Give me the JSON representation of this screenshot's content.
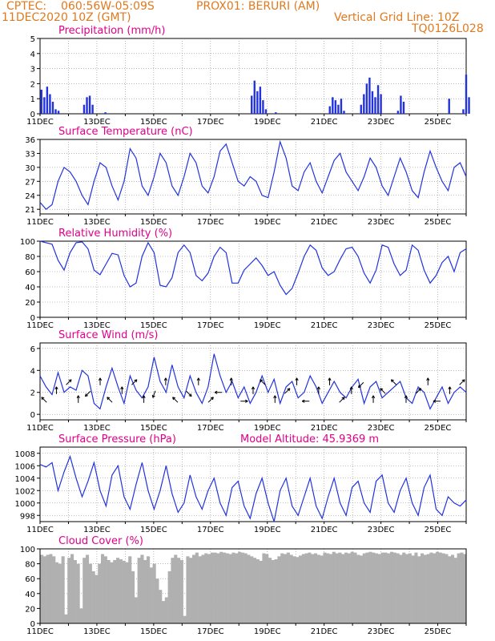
{
  "header": {
    "source": "CPTEC:",
    "coords": "060:56W-05:09S",
    "location": "PROX01: BERURI (AM)",
    "init_time": "11DEC2020 10Z (GMT)",
    "grid_note": "Vertical Grid Line: 10Z",
    "model_code": "TQ0126L028"
  },
  "colors": {
    "header_text": "#e07a1f",
    "panel_title": "#e0008a",
    "series_line": "#2233dd",
    "bars": "#2233dd",
    "cloud_fill": "#b0b0b0",
    "grid": "#888888"
  },
  "chart_data": [
    {
      "type": "bar",
      "title": "Precipitation (mm/h)",
      "x_tick_labels": [
        "11DEC",
        "13DEC",
        "15DEC",
        "17DEC",
        "19DEC",
        "21DEC",
        "23DEC",
        "25DEC"
      ],
      "ylim": [
        0,
        5
      ],
      "y_ticks": [
        0,
        1,
        2,
        3,
        4,
        5
      ],
      "grid": true,
      "series": [
        {
          "values": [
            [
              0.05,
              1.6
            ],
            [
              0.15,
              1.1
            ],
            [
              0.25,
              1.8
            ],
            [
              0.35,
              1.3
            ],
            [
              0.45,
              0.8
            ],
            [
              0.55,
              0.3
            ],
            [
              0.65,
              0.2
            ],
            [
              1.55,
              0.6
            ],
            [
              1.65,
              1.1
            ],
            [
              1.75,
              1.2
            ],
            [
              1.85,
              0.6
            ],
            [
              2.3,
              0.1
            ],
            [
              7.45,
              1.2
            ],
            [
              7.55,
              2.2
            ],
            [
              7.65,
              1.5
            ],
            [
              7.75,
              1.8
            ],
            [
              7.85,
              0.9
            ],
            [
              7.95,
              0.3
            ],
            [
              8.3,
              0.1
            ],
            [
              10.2,
              0.5
            ],
            [
              10.3,
              1.1
            ],
            [
              10.4,
              0.9
            ],
            [
              10.5,
              0.6
            ],
            [
              10.6,
              1.0
            ],
            [
              10.7,
              0.2
            ],
            [
              11.3,
              0.6
            ],
            [
              11.4,
              1.3
            ],
            [
              11.5,
              2.0
            ],
            [
              11.6,
              2.4
            ],
            [
              11.7,
              1.5
            ],
            [
              11.8,
              1.1
            ],
            [
              11.9,
              1.9
            ],
            [
              12.0,
              1.3
            ],
            [
              12.6,
              0.2
            ],
            [
              12.7,
              1.2
            ],
            [
              12.8,
              0.8
            ],
            [
              14.4,
              1.0
            ],
            [
              14.9,
              0.3
            ],
            [
              15.0,
              2.6
            ],
            [
              15.1,
              1.1
            ]
          ]
        }
      ]
    },
    {
      "type": "line",
      "title": "Surface Temperature (nC)",
      "x_tick_labels": [
        "11DEC",
        "13DEC",
        "15DEC",
        "17DEC",
        "19DEC",
        "21DEC",
        "23DEC",
        "25DEC"
      ],
      "ylim": [
        20,
        36
      ],
      "y_ticks": [
        21,
        24,
        27,
        30,
        33,
        36
      ],
      "grid": true,
      "series": [
        {
          "values": [
            22.5,
            21.0,
            22.0,
            27.0,
            30.0,
            29.0,
            27.0,
            24.0,
            22.0,
            27.0,
            31.0,
            30.0,
            26.0,
            23.0,
            27.0,
            34.0,
            32.0,
            26.0,
            24.0,
            28.0,
            33.0,
            31.0,
            26.0,
            24.0,
            28.0,
            33.0,
            31.0,
            26.0,
            24.5,
            28.0,
            33.5,
            35.0,
            31.0,
            27.0,
            26.0,
            28.0,
            27.0,
            24.0,
            23.5,
            29.0,
            35.5,
            32.0,
            26.0,
            25.0,
            29.0,
            31.0,
            27.0,
            24.5,
            28.0,
            31.5,
            33.0,
            29.0,
            27.0,
            25.0,
            28.0,
            32.0,
            30.0,
            26.0,
            24.0,
            28.0,
            32.0,
            29.0,
            25.0,
            23.5,
            29.0,
            33.5,
            30.0,
            27.0,
            25.0,
            30.0,
            31.0,
            28.0
          ]
        }
      ]
    },
    {
      "type": "line",
      "title": "Relative Humidity (%)",
      "x_tick_labels": [
        "11DEC",
        "13DEC",
        "15DEC",
        "17DEC",
        "19DEC",
        "21DEC",
        "23DEC",
        "25DEC"
      ],
      "ylim": [
        0,
        100
      ],
      "y_ticks": [
        0,
        20,
        40,
        60,
        80,
        100
      ],
      "grid": true,
      "series": [
        {
          "values": [
            100,
            98,
            96,
            75,
            62,
            85,
            98,
            99,
            90,
            62,
            56,
            70,
            84,
            82,
            55,
            40,
            45,
            80,
            98,
            85,
            42,
            40,
            52,
            85,
            95,
            85,
            55,
            48,
            58,
            80,
            92,
            85,
            45,
            45,
            62,
            70,
            78,
            68,
            55,
            60,
            42,
            30,
            38,
            58,
            80,
            95,
            88,
            65,
            55,
            60,
            76,
            90,
            92,
            80,
            58,
            45,
            62,
            95,
            92,
            70,
            55,
            62,
            95,
            88,
            62,
            45,
            55,
            72,
            80,
            60,
            85,
            90
          ]
        }
      ]
    },
    {
      "type": "line",
      "title": "Surface Wind (m/s)",
      "x_tick_labels": [
        "11DEC",
        "13DEC",
        "15DEC",
        "17DEC",
        "19DEC",
        "21DEC",
        "23DEC",
        "25DEC"
      ],
      "ylim": [
        -0.5,
        6.5
      ],
      "y_ticks": [
        0,
        2,
        4,
        6
      ],
      "grid": true,
      "series": [
        {
          "values": [
            3.5,
            2.5,
            1.8,
            3.8,
            2.0,
            2.5,
            2.2,
            4.0,
            3.5,
            1.0,
            0.5,
            2.5,
            4.2,
            2.5,
            1.0,
            3.5,
            2.2,
            1.5,
            2.5,
            5.2,
            3.0,
            2.0,
            4.5,
            2.5,
            1.5,
            3.5,
            2.0,
            1.0,
            2.5,
            5.5,
            3.5,
            2.0,
            3.0,
            1.5,
            2.5,
            1.0,
            2.0,
            3.5,
            2.0,
            3.2,
            1.0,
            2.5,
            3.0,
            1.5,
            2.0,
            3.5,
            2.5,
            1.0,
            2.0,
            3.0,
            2.0,
            1.5,
            2.5,
            3.2,
            1.0,
            2.5,
            3.0,
            1.5,
            2.0,
            2.5,
            3.0,
            1.5,
            1.0,
            2.5,
            2.0,
            0.5,
            1.5,
            2.5,
            1.0,
            2.0,
            2.5,
            2.0
          ]
        }
      ],
      "wind_direction_arrows_deg": [
        315,
        0,
        45,
        0,
        225,
        0,
        315,
        0,
        45,
        0,
        200,
        0,
        315,
        135,
        0,
        45,
        270,
        0,
        90,
        0,
        315,
        0,
        45,
        0,
        270,
        0,
        0,
        45,
        0,
        225,
        0,
        315,
        315,
        0,
        45,
        0,
        270,
        0,
        45
      ]
    },
    {
      "type": "line",
      "title": "Surface Pressure (hPa)",
      "annotation": "Model Altitude: 45.9369 m",
      "x_tick_labels": [
        "11DEC",
        "13DEC",
        "15DEC",
        "17DEC",
        "19DEC",
        "21DEC",
        "23DEC",
        "25DEC"
      ],
      "ylim": [
        997,
        1009
      ],
      "y_ticks": [
        998,
        1000,
        1002,
        1004,
        1006,
        1008
      ],
      "grid": true,
      "series": [
        {
          "values": [
            1006.2,
            1005.8,
            1006.5,
            1002.0,
            1005.0,
            1007.5,
            1004.0,
            1001.0,
            1003.5,
            1006.5,
            1002.0,
            999.5,
            1004.5,
            1006.0,
            1001.0,
            999.0,
            1003.0,
            1006.5,
            1002.0,
            999.0,
            1002.0,
            1006.0,
            1001.5,
            998.5,
            1000.0,
            1004.5,
            1001.0,
            999.0,
            1002.0,
            1004.0,
            1000.0,
            998.0,
            1002.5,
            1003.5,
            999.5,
            997.5,
            1001.5,
            1004.0,
            1000.0,
            997.0,
            1002.0,
            1004.0,
            999.5,
            998.0,
            1001.0,
            1004.0,
            999.5,
            997.5,
            1001.0,
            1004.0,
            1000.0,
            998.0,
            1002.5,
            1003.5,
            1000.0,
            998.5,
            1003.5,
            1004.5,
            1000.0,
            998.5,
            1002.0,
            1004.0,
            1000.0,
            998.0,
            1002.5,
            1004.5,
            999.0,
            998.0,
            1001.0,
            1000.0,
            999.5,
            1000.5
          ]
        }
      ]
    },
    {
      "type": "area",
      "title": "Cloud Cover (%)",
      "x_tick_labels": [
        "11DEC",
        "13DEC",
        "15DEC",
        "17DEC",
        "19DEC",
        "21DEC",
        "23DEC",
        "25DEC"
      ],
      "ylim": [
        0,
        100
      ],
      "y_ticks": [
        0,
        20,
        40,
        60,
        80,
        100
      ],
      "grid": true,
      "series": [
        {
          "values": [
            92,
            90,
            92,
            93,
            90,
            82,
            80,
            90,
            12,
            88,
            93,
            85,
            80,
            20,
            88,
            92,
            80,
            70,
            65,
            80,
            93,
            90,
            85,
            82,
            85,
            88,
            86,
            84,
            82,
            90,
            70,
            35,
            88,
            92,
            85,
            90,
            75,
            80,
            60,
            45,
            30,
            35,
            70,
            88,
            92,
            88,
            85,
            10,
            90,
            88,
            92,
            95,
            90,
            92,
            94,
            93,
            95,
            95,
            94,
            96,
            95,
            94,
            93,
            95,
            94,
            96,
            95,
            94,
            92,
            90,
            88,
            86,
            84,
            94,
            93,
            88,
            85,
            86,
            90,
            94,
            93,
            95,
            92,
            90,
            89,
            91,
            93,
            94,
            95,
            93,
            94,
            92,
            91,
            95,
            94,
            93,
            96,
            94,
            95,
            93,
            95,
            94,
            96,
            95,
            92,
            91,
            94,
            95,
            96,
            95,
            94,
            93,
            95,
            95,
            94,
            96,
            95,
            94,
            92,
            95,
            93,
            94,
            91,
            95,
            90,
            94,
            92,
            93,
            95,
            94,
            96,
            95,
            94,
            93,
            90,
            92,
            88,
            94,
            95,
            93
          ]
        }
      ]
    }
  ]
}
